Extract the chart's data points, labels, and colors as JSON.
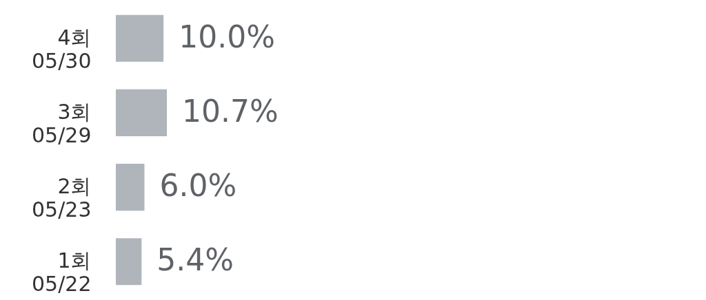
{
  "chart_data": {
    "type": "bar",
    "orientation": "horizontal",
    "data_labels": true,
    "categories": [
      "4회\n05/30",
      "3회\n05/29",
      "2회\n05/23",
      "1회\n05/22"
    ],
    "values": [
      10.0,
      10.7,
      6.0,
      5.4
    ],
    "value_labels": [
      "10.0%",
      "10.7%",
      "6.0%",
      "5.4%"
    ],
    "color": "#b0b5bc"
  }
}
